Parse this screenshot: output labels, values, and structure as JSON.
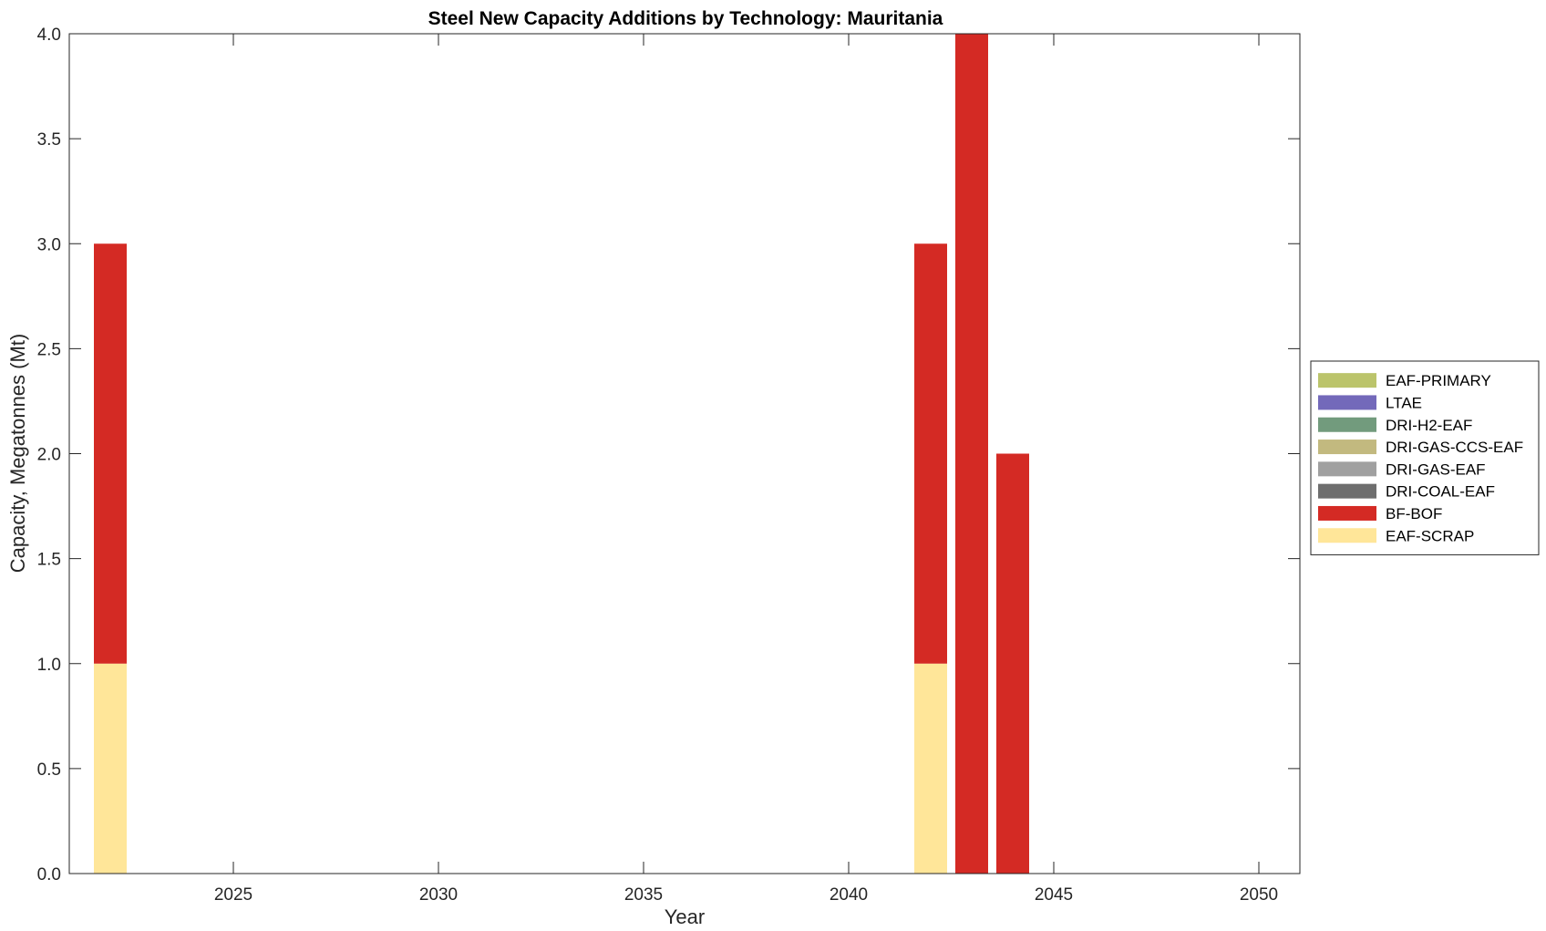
{
  "chart_data": {
    "type": "bar",
    "stacked": true,
    "title": "Steel New Capacity Additions by Technology: Mauritania",
    "xlabel": "Year",
    "ylabel": "Capacity, Megatonnes (Mt)",
    "xlim": [
      2021,
      2051
    ],
    "ylim": [
      0,
      4
    ],
    "xticks": [
      2025,
      2030,
      2035,
      2040,
      2045,
      2050
    ],
    "yticks": [
      0.0,
      0.5,
      1.0,
      1.5,
      2.0,
      2.5,
      3.0,
      3.5,
      4.0
    ],
    "grid": false,
    "legend_position": "right",
    "x": [
      2022,
      2042,
      2043,
      2044
    ],
    "series": [
      {
        "name": "EAF-SCRAP",
        "color": "#FFE699",
        "values": [
          1,
          1,
          0,
          0
        ]
      },
      {
        "name": "BF-BOF",
        "color": "#D42A24",
        "values": [
          2,
          2,
          4,
          2
        ]
      },
      {
        "name": "DRI-COAL-EAF",
        "color": "#6E6E6E",
        "values": [
          0,
          0,
          0,
          0
        ]
      },
      {
        "name": "DRI-GAS-EAF",
        "color": "#A0A0A0",
        "values": [
          0,
          0,
          0,
          0
        ]
      },
      {
        "name": "DRI-GAS-CCS-EAF",
        "color": "#C2B97F",
        "values": [
          0,
          0,
          0,
          0
        ]
      },
      {
        "name": "DRI-H2-EAF",
        "color": "#729B7D",
        "values": [
          0,
          0,
          0,
          0
        ]
      },
      {
        "name": "LTAE",
        "color": "#7369BA",
        "values": [
          0,
          0,
          0,
          0
        ]
      },
      {
        "name": "EAF-PRIMARY",
        "color": "#BBC46B",
        "values": [
          0,
          0,
          0,
          0
        ]
      }
    ],
    "legend_order": [
      "EAF-PRIMARY",
      "LTAE",
      "DRI-H2-EAF",
      "DRI-GAS-CCS-EAF",
      "DRI-GAS-EAF",
      "DRI-COAL-EAF",
      "BF-BOF",
      "EAF-SCRAP"
    ]
  }
}
